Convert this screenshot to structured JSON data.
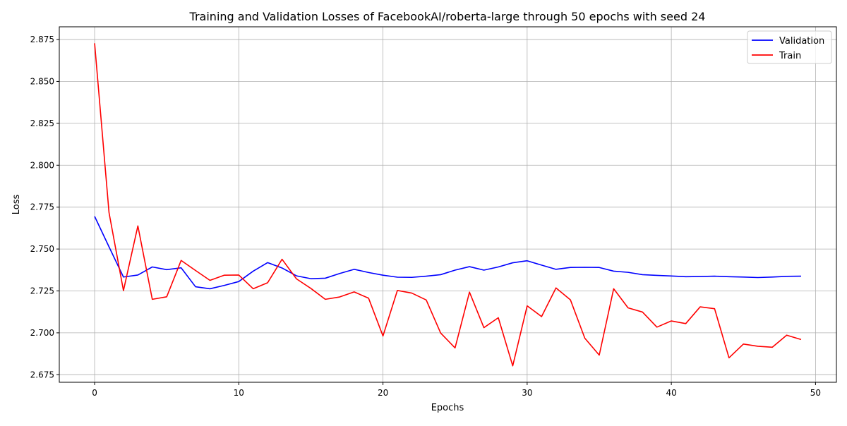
{
  "chart_data": {
    "type": "line",
    "title": "Training and Validation Losses of FacebookAI/roberta-large through 50 epochs with seed 24",
    "xlabel": "Epochs",
    "ylabel": "Loss",
    "xlim": [
      -2.45,
      51.45
    ],
    "ylim": [
      2.6705,
      2.8826
    ],
    "xticks": [
      0,
      10,
      20,
      30,
      40,
      50
    ],
    "xtick_labels": [
      "0",
      "10",
      "20",
      "30",
      "40",
      "50"
    ],
    "yticks": [
      2.675,
      2.7,
      2.725,
      2.75,
      2.775,
      2.8,
      2.825,
      2.85,
      2.875
    ],
    "ytick_labels": [
      "2.675",
      "2.700",
      "2.725",
      "2.750",
      "2.775",
      "2.800",
      "2.825",
      "2.850",
      "2.875"
    ],
    "grid": true,
    "legend_position": "top-right",
    "x": [
      0,
      1,
      2,
      3,
      4,
      5,
      6,
      7,
      8,
      9,
      10,
      11,
      12,
      13,
      14,
      15,
      16,
      17,
      18,
      19,
      20,
      21,
      22,
      23,
      24,
      25,
      26,
      27,
      28,
      29,
      30,
      31,
      32,
      33,
      34,
      35,
      36,
      37,
      38,
      39,
      40,
      41,
      42,
      43,
      44,
      45,
      46,
      47,
      48,
      49
    ],
    "series": [
      {
        "name": "Validation",
        "color": "#0000ff",
        "values": [
          2.7695,
          2.7513,
          2.7333,
          2.7345,
          2.7393,
          2.7377,
          2.7388,
          2.7275,
          2.7263,
          2.7283,
          2.7306,
          2.7368,
          2.7419,
          2.7387,
          2.734,
          2.7323,
          2.7326,
          2.7354,
          2.7379,
          2.736,
          2.7344,
          2.7332,
          2.7331,
          2.7338,
          2.7347,
          2.7374,
          2.7395,
          2.7374,
          2.7393,
          2.7418,
          2.743,
          2.7404,
          2.7379,
          2.739,
          2.7391,
          2.739,
          2.7368,
          2.7361,
          2.7347,
          2.7343,
          2.7339,
          2.7335,
          2.7336,
          2.7338,
          2.7335,
          2.7333,
          2.733,
          2.7333,
          2.7337,
          2.7338
        ]
      },
      {
        "name": "Train",
        "color": "#ff0000",
        "values": [
          2.8728,
          2.7717,
          2.7252,
          2.7638,
          2.72,
          2.7215,
          2.7432,
          2.7372,
          2.7313,
          2.7344,
          2.7345,
          2.7263,
          2.7299,
          2.7439,
          2.7322,
          2.7265,
          2.72,
          2.7214,
          2.7244,
          2.7207,
          2.6981,
          2.7253,
          2.7237,
          2.7196,
          2.6999,
          2.691,
          2.7243,
          2.7031,
          2.709,
          2.6803,
          2.7161,
          2.7097,
          2.7268,
          2.7197,
          2.6968,
          2.6867,
          2.7263,
          2.7149,
          2.7124,
          2.7034,
          2.7071,
          2.7055,
          2.7155,
          2.7144,
          2.6851,
          2.6933,
          2.692,
          2.6914,
          2.6986,
          2.696
        ]
      }
    ]
  }
}
